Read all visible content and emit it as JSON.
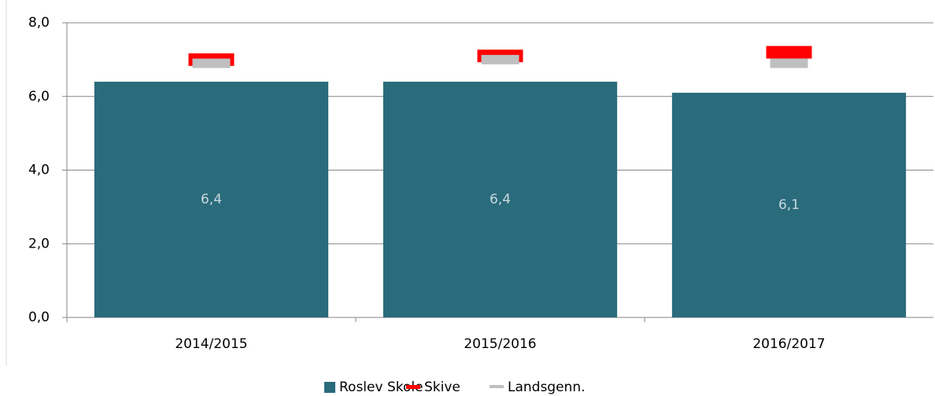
{
  "chart_data": {
    "type": "bar",
    "categories": [
      "2014/2015",
      "2015/2016",
      "2016/2017"
    ],
    "series": [
      {
        "name": "Roslev Skole",
        "color": "#2a6b7c",
        "values": [
          6.4,
          6.4,
          6.1
        ],
        "value_labels": [
          "6,4",
          "6,4",
          "6,1"
        ]
      },
      {
        "name": "Skive",
        "color": "#ff0000",
        "values": [
          7.0,
          7.1,
          7.2
        ]
      },
      {
        "name": "Landsgenn.",
        "color": "#bfbfbf",
        "values": [
          6.9,
          7.0,
          6.9
        ]
      }
    ],
    "ylim": [
      0,
      8
    ],
    "yticks": [
      {
        "value": 0,
        "label": "0,0"
      },
      {
        "value": 2,
        "label": "2,0"
      },
      {
        "value": 4,
        "label": "4,0"
      },
      {
        "value": 6,
        "label": "6,0"
      },
      {
        "value": 8,
        "label": "8,0"
      }
    ],
    "grid": true,
    "legend": "bottom"
  }
}
